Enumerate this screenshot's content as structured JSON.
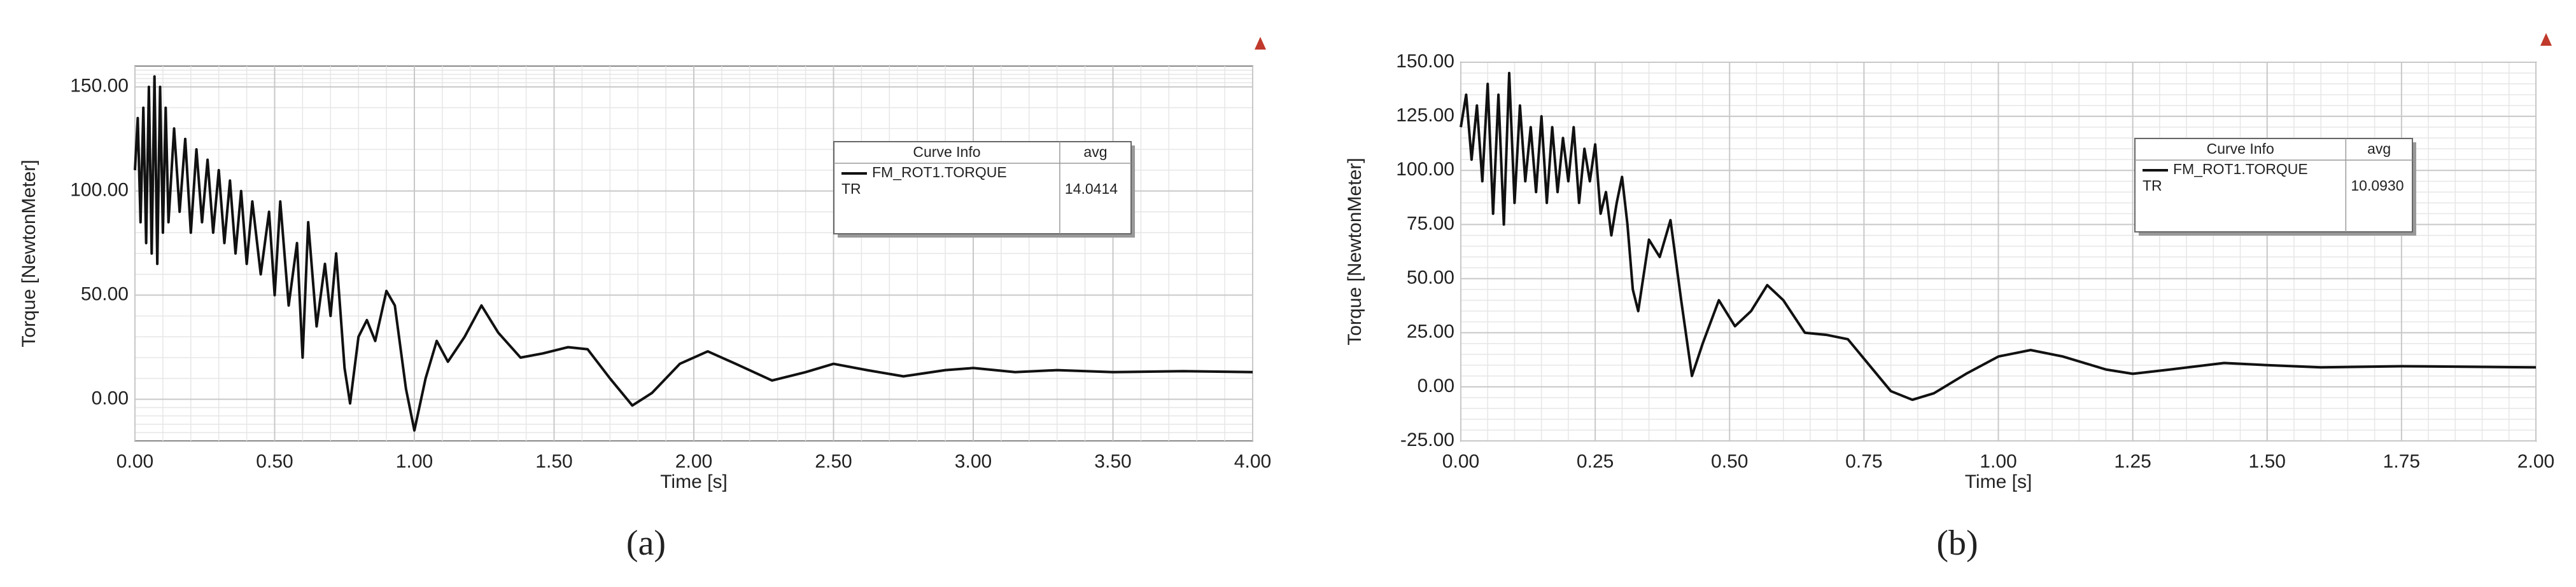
{
  "chart_data": [
    {
      "type": "line",
      "x_label": "Time [s]",
      "y_label": "Torque [NewtonMeter]",
      "caption": "(a)",
      "legend_columns": [
        "Curve Info",
        "avg"
      ],
      "legend_group": "TR",
      "avg_value": 14.0414,
      "xlim": [
        0,
        4
      ],
      "ylim": [
        -20,
        160
      ],
      "xticks": [
        {
          "value": 0,
          "label": "0.00"
        },
        {
          "value": 0.5,
          "label": "0.50"
        },
        {
          "value": 1,
          "label": "1.00"
        },
        {
          "value": 1.5,
          "label": "1.50"
        },
        {
          "value": 2,
          "label": "2.00"
        },
        {
          "value": 2.5,
          "label": "2.50"
        },
        {
          "value": 3,
          "label": "3.00"
        },
        {
          "value": 3.5,
          "label": "3.50"
        },
        {
          "value": 4,
          "label": "4.00"
        }
      ],
      "yticks": [
        {
          "value": 0,
          "label": "0.00"
        },
        {
          "value": 50,
          "label": "50.00"
        },
        {
          "value": 100,
          "label": "100.00"
        },
        {
          "value": 150,
          "label": "150.00"
        }
      ],
      "grid": true,
      "x": [
        0,
        0.01,
        0.02,
        0.03,
        0.04,
        0.05,
        0.06,
        0.07,
        0.08,
        0.09,
        0.1,
        0.11,
        0.12,
        0.14,
        0.16,
        0.18,
        0.2,
        0.22,
        0.24,
        0.26,
        0.28,
        0.3,
        0.32,
        0.34,
        0.36,
        0.38,
        0.4,
        0.42,
        0.45,
        0.48,
        0.5,
        0.52,
        0.55,
        0.58,
        0.6,
        0.62,
        0.65,
        0.68,
        0.7,
        0.72,
        0.75,
        0.77,
        0.8,
        0.83,
        0.86,
        0.9,
        0.93,
        0.97,
        1,
        1.04,
        1.08,
        1.12,
        1.18,
        1.24,
        1.3,
        1.38,
        1.46,
        1.55,
        1.62,
        1.7,
        1.78,
        1.85,
        1.95,
        2.05,
        2.15,
        2.28,
        2.4,
        2.5,
        2.62,
        2.75,
        2.9,
        3,
        3.15,
        3.3,
        3.5,
        3.75,
        4
      ],
      "series": [
        {
          "name": "FM_ROT1.TORQUE",
          "color": "#111111",
          "values": [
            110,
            135,
            85,
            140,
            75,
            150,
            70,
            155,
            65,
            150,
            80,
            140,
            85,
            130,
            90,
            125,
            80,
            120,
            85,
            115,
            80,
            110,
            75,
            105,
            70,
            100,
            65,
            95,
            60,
            90,
            50,
            95,
            45,
            75,
            20,
            85,
            35,
            65,
            40,
            70,
            15,
            -2,
            30,
            38,
            28,
            52,
            45,
            5,
            -15,
            10,
            28,
            18,
            30,
            45,
            32,
            20,
            22,
            25,
            24,
            10,
            -3,
            3,
            17,
            23,
            17,
            9,
            13,
            17,
            14,
            11,
            14,
            15,
            13,
            14,
            13,
            13.5,
            13
          ]
        }
      ]
    },
    {
      "type": "line",
      "x_label": "Time [s]",
      "y_label": "Torque [NewtonMeter]",
      "caption": "(b)",
      "legend_columns": [
        "Curve Info",
        "avg"
      ],
      "legend_group": "TR",
      "avg_value": {
        "value": 10.093,
        "label": "10.0930"
      },
      "xlim": [
        0,
        2
      ],
      "ylim": [
        -25,
        150
      ],
      "xticks": [
        {
          "value": 0,
          "label": "0.00"
        },
        {
          "value": 0.25,
          "label": "0.25"
        },
        {
          "value": 0.5,
          "label": "0.50"
        },
        {
          "value": 0.75,
          "label": "0.75"
        },
        {
          "value": 1,
          "label": "1.00"
        },
        {
          "value": 1.25,
          "label": "1.25"
        },
        {
          "value": 1.5,
          "label": "1.50"
        },
        {
          "value": 1.75,
          "label": "1.75"
        },
        {
          "value": 2,
          "label": "2.00"
        }
      ],
      "yticks": [
        {
          "value": -25,
          "label": "-25.00"
        },
        {
          "value": 0,
          "label": "0.00"
        },
        {
          "value": 25,
          "label": "25.00"
        },
        {
          "value": 50,
          "label": "50.00"
        },
        {
          "value": 75,
          "label": "75.00"
        },
        {
          "value": 100,
          "label": "100.00"
        },
        {
          "value": 125,
          "label": "125.00"
        },
        {
          "value": 150,
          "label": "150.00"
        }
      ],
      "grid": true,
      "x": [
        0,
        0.01,
        0.02,
        0.03,
        0.04,
        0.05,
        0.06,
        0.07,
        0.08,
        0.09,
        0.1,
        0.11,
        0.12,
        0.13,
        0.14,
        0.15,
        0.16,
        0.17,
        0.18,
        0.19,
        0.2,
        0.21,
        0.22,
        0.23,
        0.24,
        0.25,
        0.26,
        0.27,
        0.28,
        0.29,
        0.3,
        0.31,
        0.32,
        0.33,
        0.35,
        0.37,
        0.39,
        0.41,
        0.43,
        0.45,
        0.48,
        0.51,
        0.54,
        0.57,
        0.6,
        0.64,
        0.68,
        0.72,
        0.76,
        0.8,
        0.84,
        0.88,
        0.94,
        1,
        1.06,
        1.12,
        1.2,
        1.25,
        1.32,
        1.42,
        1.5,
        1.6,
        1.75,
        2
      ],
      "series": [
        {
          "name": "FM_ROT1.TORQUE",
          "color": "#111111",
          "values": [
            120,
            135,
            105,
            130,
            95,
            140,
            80,
            135,
            75,
            145,
            85,
            130,
            95,
            120,
            90,
            125,
            85,
            120,
            90,
            115,
            95,
            120,
            85,
            110,
            95,
            112,
            80,
            90,
            70,
            85,
            97,
            75,
            45,
            35,
            68,
            60,
            77,
            40,
            5,
            20,
            40,
            28,
            35,
            47,
            40,
            25,
            24,
            22,
            10,
            -2,
            -6,
            -3,
            6,
            14,
            17,
            14,
            8,
            6,
            8,
            11,
            10,
            9,
            9.5,
            9
          ]
        }
      ]
    }
  ]
}
